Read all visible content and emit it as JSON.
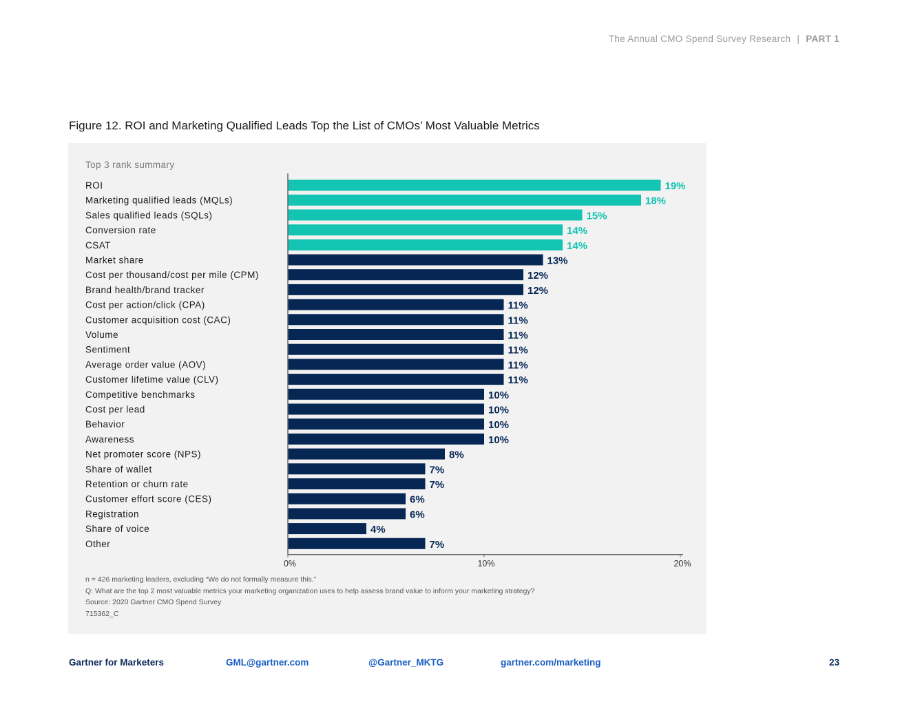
{
  "header": {
    "title": "The Annual CMO Spend Survey Research",
    "separator": "|",
    "part": "PART 1"
  },
  "figure_title": "Figure 12. ROI and Marketing Qualified Leads Top the List of CMOs’ Most Valuable Metrics",
  "chart_subtitle": "Top 3 rank summary",
  "colors": {
    "highlight": "#12c4b1",
    "primary": "#062654"
  },
  "chart_data": {
    "type": "bar",
    "orientation": "horizontal",
    "categories": [
      "ROI",
      "Marketing qualified leads (MQLs)",
      "Sales qualified leads (SQLs)",
      "Conversion rate",
      "CSAT",
      "Market share",
      "Cost per thousand/cost per mile (CPM)",
      "Brand health/brand tracker",
      "Cost per action/click (CPA)",
      "Customer acquisition cost (CAC)",
      "Volume",
      "Sentiment",
      "Average order value (AOV)",
      "Customer lifetime value (CLV)",
      "Competitive benchmarks",
      "Cost per lead",
      "Behavior",
      "Awareness",
      "Net promoter score (NPS)",
      "Share of wallet",
      "Retention or churn rate",
      "Customer effort score (CES)",
      "Registration",
      "Share of voice",
      "Other"
    ],
    "values": [
      19,
      18,
      15,
      14,
      14,
      13,
      12,
      12,
      11,
      11,
      11,
      11,
      11,
      11,
      10,
      10,
      10,
      10,
      8,
      7,
      7,
      6,
      6,
      4,
      7
    ],
    "value_labels": [
      "19%",
      "18%",
      "15%",
      "14%",
      "14%",
      "13%",
      "12%",
      "12%",
      "11%",
      "11%",
      "11%",
      "11%",
      "11%",
      "11%",
      "10%",
      "10%",
      "10%",
      "10%",
      "8%",
      "7%",
      "7%",
      "6%",
      "6%",
      "4%",
      "7%"
    ],
    "highlighted_count": 5,
    "xlim": [
      0,
      20
    ],
    "xticks": [
      0,
      10,
      20
    ],
    "xtick_labels": [
      "0%",
      "10%",
      "20%"
    ],
    "grid": false
  },
  "notes": [
    "n = 426 marketing leaders, excluding “We do not formally measure this.”",
    "Q: What are the top 2 most valuable metrics your marketing organization uses to help assess brand value to inform your marketing strategy?",
    "Source: 2020 Gartner CMO Spend Survey",
    "715362_C"
  ],
  "footer": {
    "brand": "Gartner for Marketers",
    "email": "GML@gartner.com",
    "twitter": "@Gartner_MKTG",
    "website": "gartner.com/marketing",
    "page": "23"
  }
}
